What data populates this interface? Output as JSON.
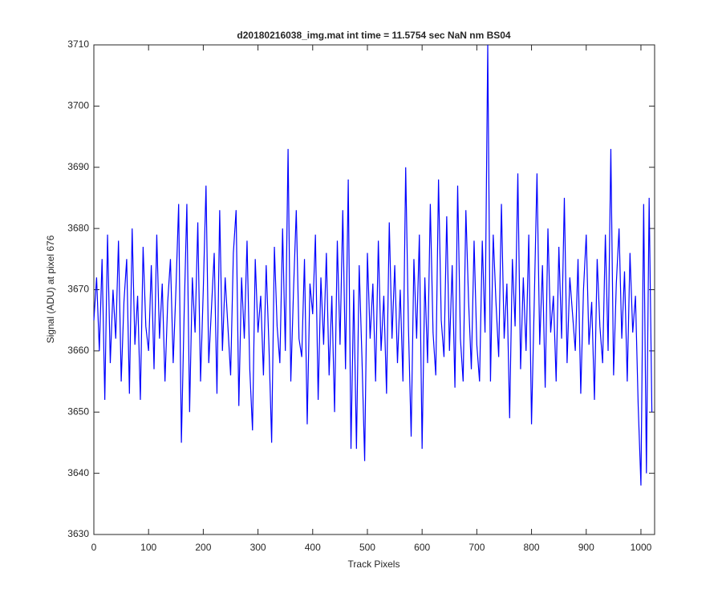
{
  "chart_data": {
    "type": "line",
    "title": "d20180216038_img.mat int time = 11.5754 sec  NaN nm BS04",
    "x_label": "Track Pixels",
    "y_label": "Signal (ADU) at pixel 676",
    "xlim": [
      0,
      1025
    ],
    "ylim": [
      3630,
      3710
    ],
    "xticks": [
      0,
      100,
      200,
      300,
      400,
      500,
      600,
      700,
      800,
      900,
      1000
    ],
    "yticks": [
      3630,
      3640,
      3650,
      3660,
      3670,
      3680,
      3690,
      3700,
      3710
    ],
    "grid": false,
    "x": [
      0,
      5,
      10,
      15,
      20,
      25,
      30,
      35,
      40,
      45,
      50,
      55,
      60,
      65,
      70,
      75,
      80,
      85,
      90,
      95,
      100,
      105,
      110,
      115,
      120,
      125,
      130,
      135,
      140,
      145,
      150,
      155,
      160,
      165,
      170,
      175,
      180,
      185,
      190,
      195,
      200,
      205,
      210,
      215,
      220,
      225,
      230,
      235,
      240,
      245,
      250,
      255,
      260,
      265,
      270,
      275,
      280,
      285,
      290,
      295,
      300,
      305,
      310,
      315,
      320,
      325,
      330,
      335,
      340,
      345,
      350,
      355,
      360,
      365,
      370,
      375,
      380,
      385,
      390,
      395,
      400,
      405,
      410,
      415,
      420,
      425,
      430,
      435,
      440,
      445,
      450,
      455,
      460,
      465,
      470,
      475,
      480,
      485,
      490,
      495,
      500,
      505,
      510,
      515,
      520,
      525,
      530,
      535,
      540,
      545,
      550,
      555,
      560,
      565,
      570,
      575,
      580,
      585,
      590,
      595,
      600,
      605,
      610,
      615,
      620,
      625,
      630,
      635,
      640,
      645,
      650,
      655,
      660,
      665,
      670,
      675,
      680,
      685,
      690,
      695,
      700,
      705,
      710,
      715,
      720,
      725,
      730,
      735,
      740,
      745,
      750,
      755,
      760,
      765,
      770,
      775,
      780,
      785,
      790,
      795,
      800,
      805,
      810,
      815,
      820,
      825,
      830,
      835,
      840,
      845,
      850,
      855,
      860,
      865,
      870,
      875,
      880,
      885,
      890,
      895,
      900,
      905,
      910,
      915,
      920,
      925,
      930,
      935,
      940,
      945,
      950,
      955,
      960,
      965,
      970,
      975,
      980,
      985,
      990,
      995,
      1000,
      1005,
      1010,
      1015,
      1020
    ],
    "series": [
      {
        "color": "#0000ff",
        "values": [
          3665,
          3672,
          3660,
          3675,
          3652,
          3679,
          3658,
          3670,
          3662,
          3678,
          3655,
          3668,
          3675,
          3653,
          3680,
          3661,
          3669,
          3652,
          3677,
          3664,
          3660,
          3674,
          3657,
          3679,
          3662,
          3671,
          3655,
          3668,
          3675,
          3658,
          3670,
          3684,
          3645,
          3666,
          3684,
          3650,
          3672,
          3663,
          3681,
          3655,
          3670,
          3687,
          3658,
          3667,
          3676,
          3653,
          3683,
          3660,
          3672,
          3664,
          3656,
          3676,
          3683,
          3651,
          3672,
          3662,
          3678,
          3657,
          3647,
          3675,
          3663,
          3669,
          3656,
          3674,
          3661,
          3645,
          3677,
          3664,
          3658,
          3680,
          3660,
          3693,
          3655,
          3670,
          3683,
          3662,
          3659,
          3675,
          3648,
          3671,
          3666,
          3679,
          3652,
          3672,
          3661,
          3676,
          3656,
          3669,
          3650,
          3678,
          3661,
          3683,
          3657,
          3688,
          3644,
          3670,
          3644,
          3674,
          3659,
          3642,
          3676,
          3662,
          3671,
          3655,
          3678,
          3660,
          3669,
          3653,
          3681,
          3662,
          3674,
          3658,
          3670,
          3655,
          3690,
          3664,
          3646,
          3675,
          3662,
          3679,
          3644,
          3672,
          3658,
          3684,
          3663,
          3656,
          3688,
          3665,
          3659,
          3682,
          3660,
          3674,
          3654,
          3687,
          3662,
          3655,
          3683,
          3668,
          3657,
          3678,
          3661,
          3655,
          3678,
          3663,
          3710,
          3655,
          3679,
          3668,
          3659,
          3684,
          3662,
          3671,
          3649,
          3675,
          3664,
          3689,
          3657,
          3672,
          3660,
          3679,
          3648,
          3668,
          3689,
          3661,
          3674,
          3654,
          3680,
          3663,
          3669,
          3655,
          3677,
          3662,
          3685,
          3658,
          3672,
          3666,
          3660,
          3675,
          3653,
          3670,
          3679,
          3661,
          3668,
          3652,
          3675,
          3664,
          3658,
          3679,
          3660,
          3693,
          3656,
          3671,
          3680,
          3662,
          3673,
          3655,
          3676,
          3663,
          3669,
          3651,
          3638,
          3684,
          3640,
          3685,
          3650
        ]
      }
    ]
  }
}
